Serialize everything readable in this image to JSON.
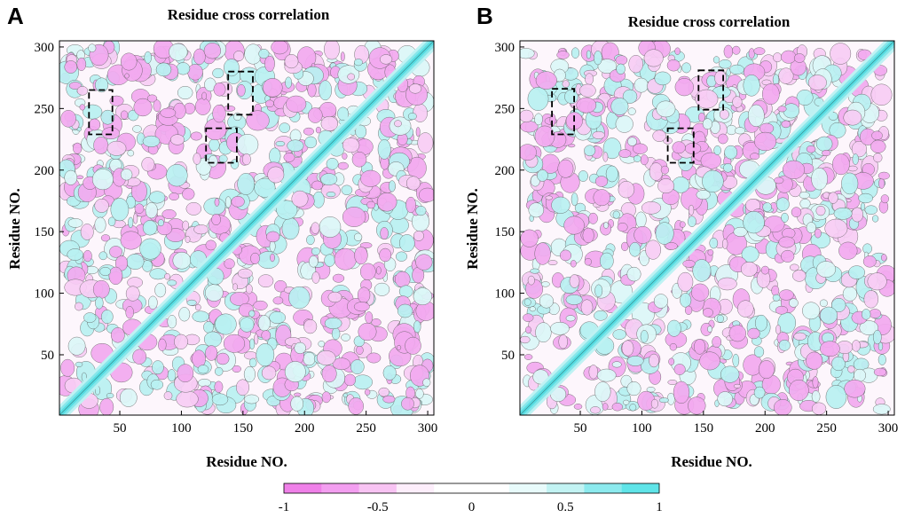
{
  "chart_data": [
    {
      "type": "heatmap",
      "panel_label": "A",
      "title": "Residue cross correlation",
      "xlabel": "Residue NO.",
      "ylabel": "Residue NO.",
      "xlim": [
        1,
        305
      ],
      "ylim": [
        1,
        305
      ],
      "xticks": [
        50,
        100,
        150,
        200,
        250,
        300
      ],
      "yticks": [
        50,
        100,
        150,
        200,
        250,
        300
      ],
      "highlight_boxes": [
        {
          "x": [
            25,
            44
          ],
          "y": [
            229,
            265
          ]
        },
        {
          "x": [
            138,
            158
          ],
          "y": [
            245,
            280
          ]
        },
        {
          "x": [
            120,
            145
          ],
          "y": [
            206,
            234
          ]
        }
      ]
    },
    {
      "type": "heatmap",
      "panel_label": "B",
      "title": "Residue cross correlation",
      "xlabel": "Residue NO.",
      "ylabel": "Residue NO.",
      "xlim": [
        1,
        305
      ],
      "ylim": [
        1,
        305
      ],
      "xticks": [
        50,
        100,
        150,
        200,
        250,
        300
      ],
      "yticks": [
        50,
        100,
        150,
        200,
        250,
        300
      ],
      "highlight_boxes": [
        {
          "x": [
            27,
            45
          ],
          "y": [
            229,
            266
          ]
        },
        {
          "x": [
            146,
            166
          ],
          "y": [
            249,
            281
          ]
        },
        {
          "x": [
            121,
            142
          ],
          "y": [
            206,
            234
          ]
        }
      ]
    }
  ],
  "colorbar": {
    "min": -1,
    "max": 1,
    "tick_values": [
      -1,
      -0.5,
      0,
      0.5,
      1
    ],
    "tick_labels": [
      "-1",
      "-0.5",
      "0",
      "0.5",
      "1"
    ],
    "colors": [
      "#ef80e8",
      "#f39ef0",
      "#f8c3f3",
      "#fdeefb",
      "#ffffff",
      "#ffffff",
      "#e8fbfb",
      "#c2f3f3",
      "#8ceaee",
      "#5fe4e8"
    ]
  }
}
